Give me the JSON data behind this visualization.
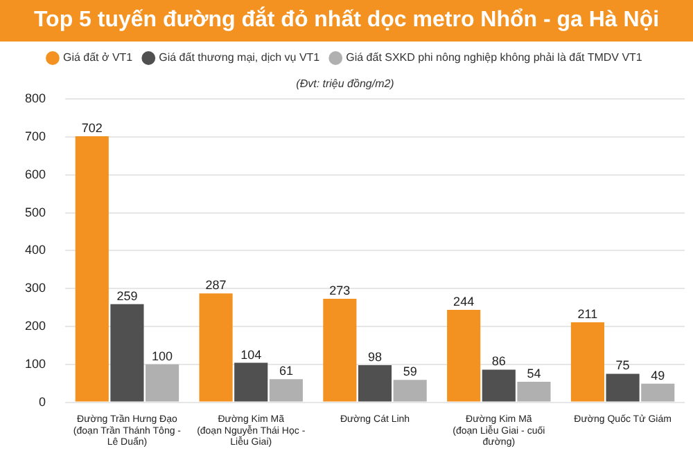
{
  "chart_data": {
    "type": "bar",
    "title": "Top 5 tuyến đường đắt đỏ nhất dọc metro Nhổn - ga Hà Nội",
    "annotations": [
      "(Đvt: triệu đồng/m2)"
    ],
    "categories": [
      "Đường Trần Hưng Đạo\n(đoạn Trần Thánh Tông - Lê Duẩn)",
      "Đường Kim Mã\n(đoạn Nguyễn Thái Học - Liễu Giai)",
      "Đường Cát Linh",
      "Đường Kim Mã\n(đoạn Liễu Giai - cuối đường)",
      "Đường Quốc Tử Giám"
    ],
    "series": [
      {
        "name": "Giá đất ở VT1",
        "color": "#f39220",
        "values": [
          702,
          287,
          273,
          244,
          211
        ]
      },
      {
        "name": "Giá đất thương mại, dịch vụ VT1",
        "color": "#505050",
        "values": [
          259,
          104,
          98,
          86,
          75
        ]
      },
      {
        "name": "Giá đất SXKD phi nông nghiệp không phải là đất TMDV VT1",
        "color": "#b0b0b0",
        "values": [
          100,
          61,
          59,
          54,
          49
        ]
      }
    ],
    "ylim": [
      0,
      800
    ],
    "yticks": [
      0,
      100,
      200,
      300,
      400,
      500,
      600,
      700,
      800
    ],
    "grid": "y",
    "legend": "top",
    "marker": "circle",
    "data_labels": true
  }
}
